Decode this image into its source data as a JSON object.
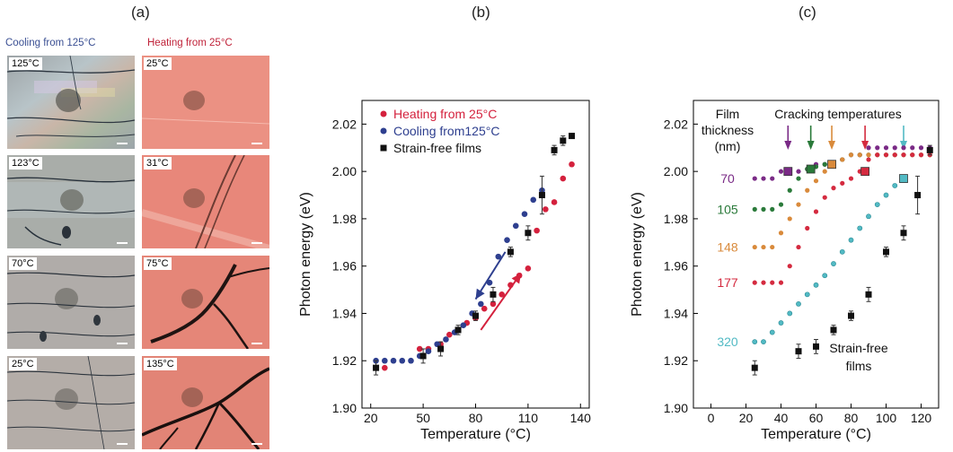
{
  "panel_a": {
    "letter": "(a)",
    "cooling_header": "Cooling from 125°C",
    "heating_header": "Heating from 25°C",
    "cooling_color": "#3a4f93",
    "heating_color": "#c0233a",
    "cooling_images": [
      {
        "label": "125°C"
      },
      {
        "label": "123°C"
      },
      {
        "label": "70°C"
      },
      {
        "label": "25°C"
      }
    ],
    "heating_images": [
      {
        "label": "25°C"
      },
      {
        "label": "31°C"
      },
      {
        "label": "75°C"
      },
      {
        "label": "135°C"
      }
    ]
  },
  "chart_data": [
    {
      "panel": "(b)",
      "type": "scatter",
      "xlabel": "Temperature (°C)",
      "ylabel": "Photon energy (eV)",
      "xlim": [
        15,
        145
      ],
      "ylim": [
        1.9,
        2.03
      ],
      "xticks": [
        20,
        50,
        80,
        110,
        140
      ],
      "yticks": [
        1.9,
        1.92,
        1.94,
        1.96,
        1.98,
        2.0,
        2.02
      ],
      "ytick_labels": [
        "1.90",
        "1.92",
        "1.94",
        "1.96",
        "1.98",
        "2.00",
        "2.02"
      ],
      "legend": [
        {
          "label": "Heating from 25°C",
          "color": "#d4213d",
          "marker": "circle"
        },
        {
          "label": "Cooling from125°C",
          "color": "#2e3f8f",
          "marker": "circle"
        },
        {
          "label": "Strain-free films",
          "color": "#111111",
          "marker": "square"
        }
      ],
      "series": [
        {
          "name": "Heating from 25°C",
          "color": "#d4213d",
          "marker": "circle",
          "points": [
            [
              23,
              1.917
            ],
            [
              28,
              1.917
            ],
            [
              48,
              1.925
            ],
            [
              53,
              1.925
            ],
            [
              60,
              1.927
            ],
            [
              65,
              1.931
            ],
            [
              70,
              1.933
            ],
            [
              75,
              1.936
            ],
            [
              80,
              1.938
            ],
            [
              85,
              1.942
            ],
            [
              90,
              1.944
            ],
            [
              95,
              1.948
            ],
            [
              100,
              1.952
            ],
            [
              105,
              1.956
            ],
            [
              110,
              1.959
            ],
            [
              115,
              1.975
            ],
            [
              120,
              1.984
            ],
            [
              125,
              1.987
            ],
            [
              130,
              1.997
            ],
            [
              135,
              2.003
            ]
          ]
        },
        {
          "name": "Cooling from125°C",
          "color": "#2e3f8f",
          "marker": "circle",
          "points": [
            [
              23,
              1.92
            ],
            [
              28,
              1.92
            ],
            [
              33,
              1.92
            ],
            [
              38,
              1.92
            ],
            [
              43,
              1.92
            ],
            [
              48,
              1.922
            ],
            [
              53,
              1.924
            ],
            [
              58,
              1.927
            ],
            [
              63,
              1.929
            ],
            [
              68,
              1.932
            ],
            [
              73,
              1.935
            ],
            [
              78,
              1.94
            ],
            [
              83,
              1.944
            ],
            [
              88,
              1.953
            ],
            [
              93,
              1.964
            ],
            [
              98,
              1.971
            ],
            [
              103,
              1.977
            ],
            [
              108,
              1.982
            ],
            [
              113,
              1.988
            ],
            [
              118,
              1.992
            ]
          ]
        },
        {
          "name": "Strain-free films",
          "color": "#111111",
          "marker": "square",
          "points": [
            [
              23,
              1.917
            ],
            [
              50,
              1.922
            ],
            [
              60,
              1.925
            ],
            [
              70,
              1.933
            ],
            [
              80,
              1.939
            ],
            [
              90,
              1.948
            ],
            [
              100,
              1.966
            ],
            [
              110,
              1.974
            ],
            [
              118,
              1.99
            ],
            [
              125,
              2.009
            ],
            [
              130,
              2.013
            ],
            [
              135,
              2.015
            ]
          ],
          "errors": [
            0.003,
            0.003,
            0.003,
            0.002,
            0.002,
            0.003,
            0.002,
            0.003,
            0.008,
            0.002,
            0.002,
            0.001
          ]
        }
      ],
      "annotations": [
        {
          "type": "arrow",
          "color": "#2e3f8f",
          "from": [
            97,
            1.966
          ],
          "to": [
            80,
            1.946
          ]
        },
        {
          "type": "arrow",
          "color": "#d4213d",
          "from": [
            83,
            1.933
          ],
          "to": [
            106,
            1.957
          ]
        }
      ]
    },
    {
      "panel": "(c)",
      "type": "scatter",
      "xlabel": "Temperature (°C)",
      "ylabel": "Photon energy (eV)",
      "xlim": [
        -10,
        130
      ],
      "ylim": [
        1.9,
        2.03
      ],
      "xticks": [
        0,
        20,
        40,
        60,
        80,
        100,
        120
      ],
      "yticks": [
        1.9,
        1.92,
        1.94,
        1.96,
        1.98,
        2.0,
        2.02
      ],
      "ytick_labels": [
        "1.90",
        "1.92",
        "1.94",
        "1.96",
        "1.98",
        "2.00",
        "2.02"
      ],
      "thickness_title": [
        "Film",
        "thickness",
        "(nm)"
      ],
      "cracking_title": "Cracking temperatures",
      "strain_free_label": [
        "Strain-free",
        "films"
      ],
      "series": [
        {
          "name": "70",
          "color": "#7a2a86",
          "points": [
            [
              25,
              1.997
            ],
            [
              30,
              1.997
            ],
            [
              35,
              1.997
            ],
            [
              40,
              2.0
            ],
            [
              45,
              2.0
            ],
            [
              50,
              2.0
            ],
            [
              55,
              2.001
            ],
            [
              60,
              2.003
            ],
            [
              65,
              2.003
            ],
            [
              70,
              2.003
            ],
            [
              75,
              2.005
            ],
            [
              80,
              2.007
            ],
            [
              85,
              2.007
            ],
            [
              90,
              2.01
            ],
            [
              95,
              2.01
            ],
            [
              100,
              2.01
            ],
            [
              105,
              2.01
            ],
            [
              110,
              2.01
            ],
            [
              115,
              2.01
            ],
            [
              120,
              2.01
            ],
            [
              125,
              2.01
            ]
          ],
          "cracking": {
            "x": 44,
            "y": 2.0
          }
        },
        {
          "name": "105",
          "color": "#2a7a3a",
          "points": [
            [
              25,
              1.984
            ],
            [
              30,
              1.984
            ],
            [
              35,
              1.984
            ],
            [
              40,
              1.986
            ],
            [
              45,
              1.992
            ],
            [
              50,
              1.997
            ],
            [
              55,
              2.001
            ],
            [
              60,
              2.002
            ],
            [
              65,
              2.003
            ],
            [
              70,
              2.003
            ],
            [
              75,
              2.005
            ],
            [
              80,
              2.007
            ],
            [
              85,
              2.007
            ],
            [
              90,
              2.007
            ],
            [
              95,
              2.007
            ],
            [
              100,
              2.007
            ],
            [
              105,
              2.007
            ],
            [
              110,
              2.007
            ],
            [
              115,
              2.007
            ],
            [
              120,
              2.007
            ],
            [
              125,
              2.007
            ]
          ],
          "cracking": {
            "x": 57,
            "y": 2.001
          }
        },
        {
          "name": "148",
          "color": "#d98a3b",
          "points": [
            [
              25,
              1.968
            ],
            [
              30,
              1.968
            ],
            [
              35,
              1.968
            ],
            [
              40,
              1.974
            ],
            [
              45,
              1.98
            ],
            [
              50,
              1.986
            ],
            [
              55,
              1.992
            ],
            [
              60,
              1.996
            ],
            [
              65,
              2.0
            ],
            [
              70,
              2.003
            ],
            [
              75,
              2.005
            ],
            [
              80,
              2.007
            ],
            [
              85,
              2.007
            ],
            [
              90,
              2.007
            ],
            [
              95,
              2.007
            ],
            [
              100,
              2.007
            ],
            [
              105,
              2.007
            ],
            [
              110,
              2.007
            ],
            [
              115,
              2.007
            ],
            [
              120,
              2.007
            ],
            [
              125,
              2.007
            ]
          ],
          "cracking": {
            "x": 69,
            "y": 2.003
          }
        },
        {
          "name": "177",
          "color": "#d42a3f",
          "points": [
            [
              25,
              1.953
            ],
            [
              30,
              1.953
            ],
            [
              35,
              1.953
            ],
            [
              40,
              1.953
            ],
            [
              45,
              1.96
            ],
            [
              50,
              1.968
            ],
            [
              55,
              1.976
            ],
            [
              60,
              1.983
            ],
            [
              65,
              1.989
            ],
            [
              70,
              1.993
            ],
            [
              75,
              1.995
            ],
            [
              80,
              1.997
            ],
            [
              85,
              2.0
            ],
            [
              90,
              2.005
            ],
            [
              95,
              2.007
            ],
            [
              100,
              2.007
            ],
            [
              105,
              2.007
            ],
            [
              110,
              2.007
            ],
            [
              115,
              2.007
            ],
            [
              120,
              2.007
            ],
            [
              125,
              2.007
            ]
          ],
          "cracking": {
            "x": 88,
            "y": 2.0
          }
        },
        {
          "name": "320",
          "color": "#52bac4",
          "points": [
            [
              25,
              1.928
            ],
            [
              30,
              1.928
            ],
            [
              35,
              1.932
            ],
            [
              40,
              1.936
            ],
            [
              45,
              1.94
            ],
            [
              50,
              1.944
            ],
            [
              55,
              1.948
            ],
            [
              60,
              1.952
            ],
            [
              65,
              1.956
            ],
            [
              70,
              1.961
            ],
            [
              75,
              1.966
            ],
            [
              80,
              1.971
            ],
            [
              85,
              1.976
            ],
            [
              90,
              1.981
            ],
            [
              95,
              1.986
            ],
            [
              100,
              1.99
            ],
            [
              105,
              1.994
            ],
            [
              110,
              1.997
            ]
          ],
          "cracking": {
            "x": 110,
            "y": 1.997
          }
        },
        {
          "name": "Strain-free films",
          "color": "#111111",
          "marker": "square",
          "points": [
            [
              25,
              1.917
            ],
            [
              50,
              1.924
            ],
            [
              60,
              1.926
            ],
            [
              70,
              1.933
            ],
            [
              80,
              1.939
            ],
            [
              90,
              1.948
            ],
            [
              100,
              1.966
            ],
            [
              110,
              1.974
            ],
            [
              118,
              1.99
            ],
            [
              125,
              2.009
            ]
          ],
          "errors": [
            0.003,
            0.003,
            0.003,
            0.002,
            0.002,
            0.003,
            0.002,
            0.003,
            0.008,
            0.002
          ]
        }
      ],
      "cracking_arrows": [
        {
          "x": 44,
          "color": "#7a2a86"
        },
        {
          "x": 57,
          "color": "#2a7a3a"
        },
        {
          "x": 69,
          "color": "#d98a3b"
        },
        {
          "x": 88,
          "color": "#d42a3f"
        },
        {
          "x": 110,
          "color": "#52bac4"
        }
      ]
    }
  ]
}
